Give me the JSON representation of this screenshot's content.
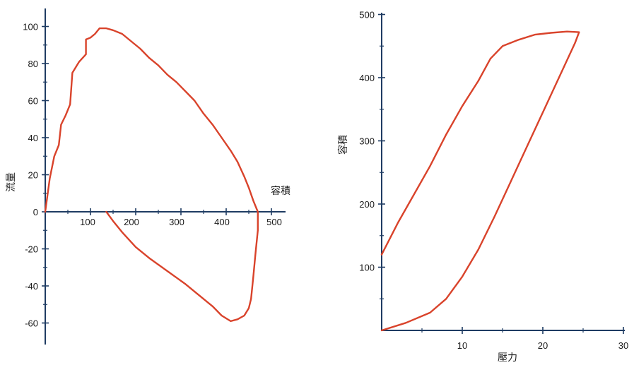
{
  "chart_data": [
    {
      "type": "line",
      "title": "",
      "xlabel": "容積",
      "ylabel": "流量",
      "xlim": [
        0,
        500
      ],
      "ylim": [
        -65,
        105
      ],
      "xticks": [
        100,
        200,
        300,
        400,
        500
      ],
      "yticks": [
        100,
        80,
        60,
        40,
        20,
        0,
        -20,
        -40,
        -60
      ],
      "xtick_labels": [
        "100",
        "200",
        "300",
        "400",
        "500"
      ],
      "ytick_labels": [
        "100",
        "80",
        "60",
        "40",
        "20",
        "0",
        "-20",
        "-40",
        "-60"
      ],
      "grid": false,
      "line_color": "#d9432b",
      "axis_color": "#1f3c63",
      "series": [
        {
          "points": [
            [
              0,
              0
            ],
            [
              10,
              18
            ],
            [
              20,
              30
            ],
            [
              30,
              36
            ],
            [
              35,
              47
            ],
            [
              45,
              52
            ],
            [
              55,
              58
            ],
            [
              60,
              75
            ],
            [
              75,
              81
            ],
            [
              90,
              85
            ],
            [
              90,
              93
            ],
            [
              100,
              94
            ],
            [
              110,
              96
            ],
            [
              120,
              99
            ],
            [
              135,
              99
            ],
            [
              150,
              98
            ],
            [
              170,
              96
            ],
            [
              190,
              92
            ],
            [
              210,
              88
            ],
            [
              230,
              83
            ],
            [
              250,
              79
            ],
            [
              270,
              74
            ],
            [
              290,
              70
            ],
            [
              310,
              65
            ],
            [
              330,
              60
            ],
            [
              350,
              53
            ],
            [
              370,
              47
            ],
            [
              390,
              40
            ],
            [
              410,
              33
            ],
            [
              425,
              27
            ],
            [
              440,
              19
            ],
            [
              450,
              13
            ],
            [
              460,
              6
            ],
            [
              470,
              0
            ],
            [
              470,
              -10
            ],
            [
              465,
              -22
            ],
            [
              460,
              -35
            ],
            [
              455,
              -47
            ],
            [
              450,
              -52
            ],
            [
              440,
              -56
            ],
            [
              425,
              -58
            ],
            [
              410,
              -59
            ],
            [
              390,
              -56
            ],
            [
              370,
              -51
            ],
            [
              350,
              -47
            ],
            [
              310,
              -39
            ],
            [
              270,
              -32
            ],
            [
              230,
              -25
            ],
            [
              200,
              -19
            ],
            [
              170,
              -11
            ],
            [
              150,
              -5
            ],
            [
              135,
              0
            ]
          ]
        }
      ]
    },
    {
      "type": "line",
      "title": "",
      "xlabel": "壓力",
      "ylabel": "容積",
      "xlim": [
        0,
        30
      ],
      "ylim": [
        0,
        500
      ],
      "xticks": [
        10,
        20,
        30
      ],
      "yticks": [
        100,
        200,
        300,
        400,
        500
      ],
      "xtick_labels": [
        "10",
        "20",
        "30"
      ],
      "ytick_labels": [
        "100",
        "200",
        "300",
        "400",
        "500"
      ],
      "grid": false,
      "line_color": "#d9432b",
      "axis_color": "#1f3c63",
      "series": [
        {
          "points": [
            [
              0,
              120
            ],
            [
              2,
              170
            ],
            [
              4,
              215
            ],
            [
              6,
              260
            ],
            [
              8,
              310
            ],
            [
              10,
              355
            ],
            [
              12,
              395
            ],
            [
              13.5,
              430
            ],
            [
              15,
              450
            ],
            [
              17,
              460
            ],
            [
              19,
              468
            ],
            [
              21,
              471
            ],
            [
              23,
              473
            ],
            [
              24.5,
              472
            ],
            [
              24,
              455
            ],
            [
              22,
              400
            ],
            [
              20,
              345
            ],
            [
              18,
              290
            ],
            [
              16,
              235
            ],
            [
              14,
              180
            ],
            [
              12,
              128
            ],
            [
              10,
              85
            ],
            [
              8,
              50
            ],
            [
              6,
              28
            ],
            [
              3,
              12
            ],
            [
              0,
              0
            ]
          ]
        }
      ]
    }
  ]
}
